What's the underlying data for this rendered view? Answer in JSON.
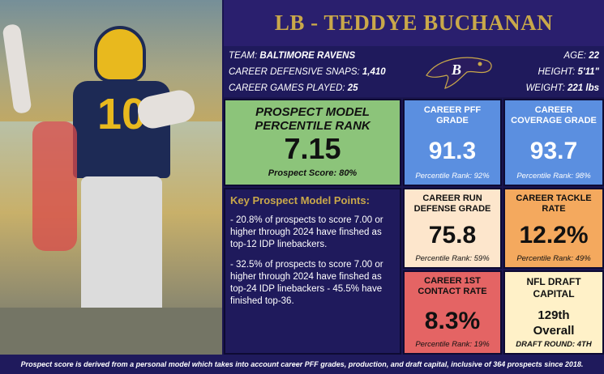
{
  "header": {
    "title": "LB - TEDDYE BUCHANAN"
  },
  "photo": {
    "jersey_number": "10"
  },
  "info": {
    "team_label": "TEAM:",
    "team_value": "BALTIMORE RAVENS",
    "snaps_label": "CAREER DEFENSIVE SNAPS:",
    "snaps_value": "1,410",
    "games_label": "CAREER GAMES PLAYED:",
    "games_value": "25",
    "age_label": "AGE:",
    "age_value": "22",
    "height_label": "HEIGHT:",
    "height_value": "5'11\"",
    "weight_label": "WEIGHT:",
    "weight_value": "221 lbs"
  },
  "prospect": {
    "title_line1": "PROSPECT MODEL",
    "title_line2": "PERCENTILE RANK",
    "value": "7.15",
    "score": "Prospect Score: 80%"
  },
  "key_points": {
    "title": "Key Prospect Model Points:",
    "point1": "- 20.8% of prospects to score 7.00 or higher through 2024 have finshed as top-12 IDP linebackers.",
    "point2": "- 32.5% of prospects to score 7.00 or higher through 2024 have finshed as top-24 IDP linebackers - 45.5% have finished top-36."
  },
  "cards": {
    "pff": {
      "title": "CAREER PFF GRADE",
      "value": "91.3",
      "sub": "Percentile Rank: 92%"
    },
    "coverage": {
      "title": "CAREER COVERAGE GRADE",
      "value": "93.7",
      "sub": "Percentile Rank: 98%"
    },
    "run": {
      "title": "CAREER RUN DEFENSE GRADE",
      "value": "75.8",
      "sub": "Percentile Rank: 59%"
    },
    "tackle": {
      "title": "CAREER TACKLE RATE",
      "value": "12.2%",
      "sub": "Percentile Rank: 49%"
    },
    "contact": {
      "title": "CAREER 1ST CONTACT RATE",
      "value": "8.3%",
      "sub": "Percentile Rank: 19%"
    },
    "draft": {
      "title": "NFL DRAFT CAPITAL",
      "value_line1": "129th",
      "value_line2": "Overall",
      "sub": "DRAFT ROUND: 4TH"
    }
  },
  "footer": {
    "text": "Prospect score is derived from a personal model which takes into account career PFF grades, production, and draft capital, inclusive of 364 prospects since 2018."
  },
  "colors": {
    "navy": "#1f1a5c",
    "gold": "#c9a84a",
    "green": "#8cc47a",
    "blue": "#5b8fe0",
    "peach": "#fde6cc",
    "orange": "#f4a95e",
    "red": "#e46464",
    "cream": "#fff1c8"
  }
}
